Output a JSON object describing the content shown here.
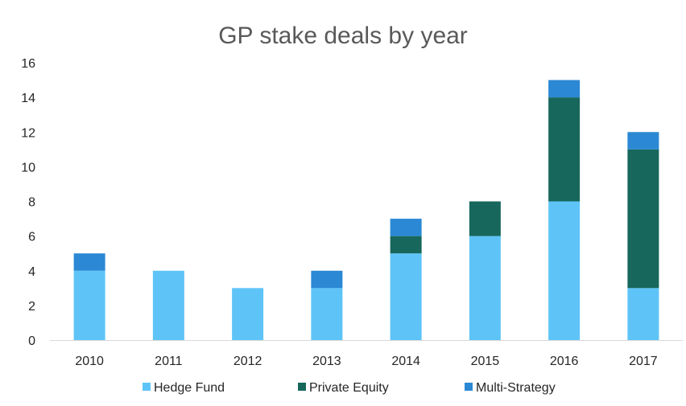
{
  "chart_data": {
    "type": "bar",
    "stacked": true,
    "title": "GP stake deals by year",
    "xlabel": "",
    "ylabel": "",
    "categories": [
      "2010",
      "2011",
      "2012",
      "2013",
      "2014",
      "2015",
      "2016",
      "2017"
    ],
    "series": [
      {
        "name": "Hedge Fund",
        "color": "#5ec4f8",
        "values": [
          4,
          4,
          3,
          3,
          5,
          6,
          8,
          3
        ]
      },
      {
        "name": "Private Equity",
        "color": "#17675c",
        "values": [
          0,
          0,
          0,
          0,
          1,
          2,
          6,
          8
        ]
      },
      {
        "name": "Multi-Strategy",
        "color": "#2b88d4",
        "values": [
          1,
          0,
          0,
          1,
          1,
          0,
          1,
          1
        ]
      }
    ],
    "ylim": [
      0,
      16
    ],
    "yticks": [
      "0",
      "2",
      "4",
      "6",
      "8",
      "10",
      "12",
      "14",
      "16"
    ],
    "grid": false,
    "legend_position": "bottom"
  }
}
